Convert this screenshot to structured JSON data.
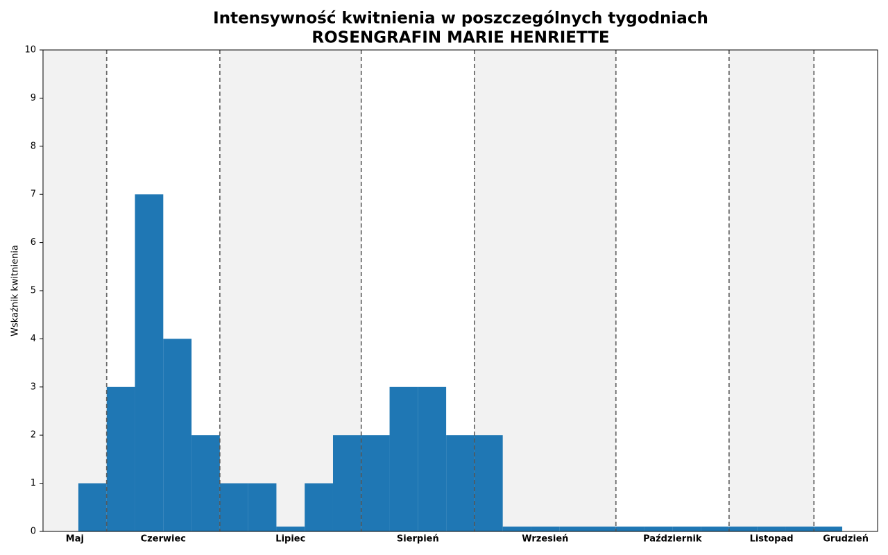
{
  "chart_data": {
    "type": "histogram",
    "title": "Intensywność kwitnienia w poszczególnych tygodniach",
    "subtitle": "ROSENGRAFIN MARIE HENRIETTE",
    "y_label": "Wskaźnik kwitnienia",
    "bins": [
      0,
      1,
      2,
      3,
      4,
      5,
      6,
      7,
      8,
      9,
      10,
      11,
      12,
      13,
      14,
      15,
      16,
      17,
      18,
      19,
      20,
      21,
      22,
      23,
      24,
      25,
      26,
      27
    ],
    "values": [
      1,
      3,
      7,
      4,
      2,
      1,
      1,
      0.1,
      1,
      2,
      2,
      3,
      3,
      2,
      2,
      0.1,
      0.1,
      0.1,
      0.1,
      0.1,
      0.1,
      0.1,
      0.1,
      0.1,
      0.1,
      0.1,
      0.1
    ],
    "color": "#1f77b4",
    "xlim": [
      -1.25,
      28.25
    ],
    "ylim": [
      0,
      10
    ],
    "yticks": [
      0,
      1,
      2,
      3,
      4,
      5,
      6,
      7,
      8,
      9,
      10
    ],
    "months": [
      "Maj",
      "Czerwiec",
      "Lipiec",
      "Sierpień",
      "Wrzesień",
      "Październik",
      "Listopad",
      "Grudzień"
    ],
    "month_boundaries": [
      1,
      5,
      10,
      14,
      19,
      23,
      26
    ],
    "band_color": "#f2f2f2",
    "boundary_color": "#555555"
  }
}
